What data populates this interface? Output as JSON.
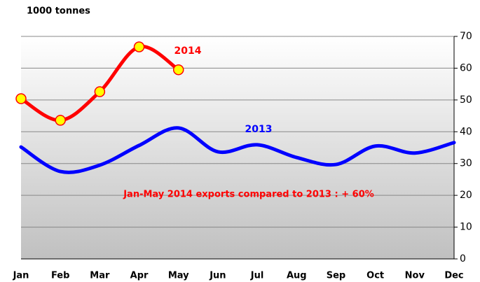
{
  "chart_data": {
    "type": "line",
    "y_label": "1000 tonnes",
    "annotation": "Jan-May 2014 exports compared to 2013 : + 60%",
    "categories": [
      "Jan",
      "Feb",
      "Mar",
      "Apr",
      "May",
      "Jun",
      "Jul",
      "Aug",
      "Sep",
      "Oct",
      "Nov",
      "Dec"
    ],
    "series": [
      {
        "name": "2014",
        "color": "#ff0000",
        "marker_color": "#ffff00",
        "values": [
          50.4,
          43.6,
          52.6,
          66.7,
          59.5,
          null,
          null,
          null,
          null,
          null,
          null,
          null
        ]
      },
      {
        "name": "2013",
        "color": "#0000ff",
        "values": [
          35.2,
          27.5,
          29.5,
          35.7,
          41.2,
          33.7,
          35.9,
          31.9,
          29.7,
          35.5,
          33.3,
          36.6
        ]
      }
    ],
    "ylim": [
      0,
      70
    ],
    "yticks": [
      0,
      10,
      20,
      30,
      40,
      50,
      60,
      70
    ],
    "y_axis_side": "right",
    "grid": true
  }
}
